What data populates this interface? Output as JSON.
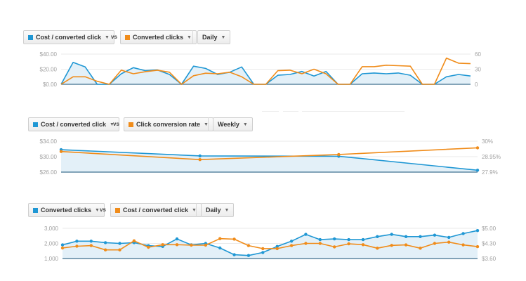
{
  "colors": {
    "blue": "#1f97d4",
    "orange": "#f08c1a",
    "area": "#e3f0f8",
    "axis": "#3e6f8f",
    "grid": "#e9e9e9"
  },
  "panels": [
    {
      "metric_left": "Cost / converted click",
      "vs": "vs",
      "metric_right": "Converted clicks",
      "interval": "Daily"
    },
    {
      "metric_left": "Cost / converted click",
      "vs": "vs",
      "metric_right": "Click conversion rate",
      "interval": "Weekly"
    },
    {
      "metric_left": "Converted clicks",
      "vs": "vs",
      "metric_right": "Cost / converted click",
      "interval": "Daily"
    }
  ],
  "chart_data": [
    {
      "type": "line",
      "left_axis": {
        "ticks": [
          "$40.00",
          "$20.00",
          "$0.00"
        ],
        "range": [
          0,
          40
        ]
      },
      "right_axis": {
        "ticks": [
          "60",
          "30",
          "0"
        ],
        "range": [
          0,
          60
        ]
      },
      "grid": true,
      "series": [
        {
          "name": "Cost / converted click",
          "axis": "left",
          "color": "blue",
          "area": true,
          "values": [
            0,
            29,
            23,
            0,
            0,
            14,
            22,
            18,
            19,
            13,
            0,
            24,
            21,
            13,
            16,
            23,
            0,
            0,
            12,
            13,
            17,
            11,
            17,
            0,
            0,
            14,
            15,
            14,
            15,
            12,
            0,
            0,
            10,
            13,
            11
          ]
        },
        {
          "name": "Converted clicks",
          "axis": "right",
          "color": "orange",
          "area": false,
          "values": [
            0,
            15,
            15,
            6,
            0,
            28,
            21,
            25,
            28,
            24,
            0,
            17,
            22,
            21,
            24,
            15,
            0,
            0,
            27,
            28,
            21,
            30,
            21,
            0,
            0,
            35,
            35,
            38,
            37,
            36,
            0,
            0,
            52,
            42,
            41
          ]
        }
      ]
    },
    {
      "type": "line",
      "left_axis": {
        "ticks": [
          "$34.00",
          "$30.00",
          "$26.00"
        ],
        "range": [
          26,
          34
        ]
      },
      "right_axis": {
        "ticks": [
          "30%",
          "28.95%",
          "27.9%"
        ],
        "range": [
          27.9,
          30
        ]
      },
      "grid": true,
      "series": [
        {
          "name": "Cost / converted click",
          "axis": "left",
          "color": "blue",
          "area": true,
          "values": [
            31.8,
            30.2,
            30.1,
            26.5
          ]
        },
        {
          "name": "Click conversion rate",
          "axis": "right",
          "color": "orange",
          "area": false,
          "values": [
            29.3,
            28.75,
            29.1,
            29.55
          ]
        }
      ]
    },
    {
      "type": "line",
      "left_axis": {
        "ticks": [
          "3,000",
          "2,000",
          "1,000"
        ],
        "range": [
          1000,
          3000
        ]
      },
      "right_axis": {
        "ticks": [
          "$5.00",
          "$4.30",
          "$3.60"
        ],
        "range": [
          3.6,
          5.0
        ]
      },
      "grid": true,
      "series": [
        {
          "name": "Converted clicks",
          "axis": "left",
          "color": "blue",
          "area": true,
          "values": [
            1900,
            2150,
            2150,
            2050,
            2000,
            2050,
            1850,
            1800,
            2300,
            1900,
            2000,
            1700,
            1250,
            1200,
            1400,
            1800,
            2150,
            2600,
            2250,
            2300,
            2250,
            2250,
            2450,
            2600,
            2450,
            2450,
            2550,
            2400,
            2650,
            2850
          ]
        },
        {
          "name": "Cost / converted click",
          "axis": "right",
          "color": "orange",
          "area": false,
          "values": [
            4.09,
            4.17,
            4.2,
            4.0,
            4.0,
            4.42,
            4.12,
            4.24,
            4.24,
            4.22,
            4.22,
            4.52,
            4.5,
            4.2,
            4.06,
            4.06,
            4.2,
            4.3,
            4.3,
            4.14,
            4.28,
            4.24,
            4.08,
            4.21,
            4.23,
            4.08,
            4.3,
            4.36,
            4.23,
            4.15
          ]
        }
      ]
    }
  ]
}
